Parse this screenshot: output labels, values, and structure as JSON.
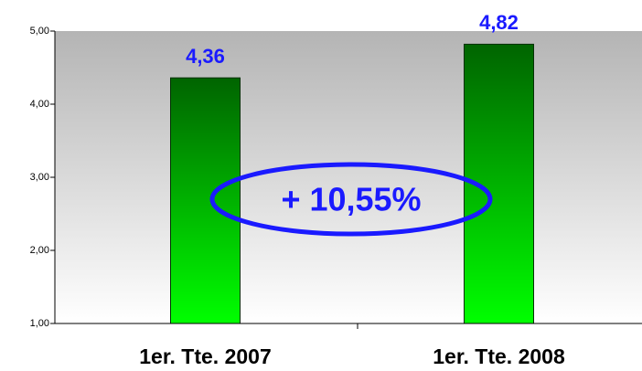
{
  "chart_data": {
    "type": "bar",
    "categories": [
      "1er. Tte. 2007",
      "1er. Tte. 2008"
    ],
    "values": [
      4.36,
      4.82
    ],
    "value_labels": [
      "4,36",
      "4,82"
    ],
    "color": "#00a000",
    "ylim": [
      1,
      5
    ],
    "yticks": [
      {
        "value": 1,
        "label": "1,00"
      },
      {
        "value": 2,
        "label": "2,00"
      },
      {
        "value": 3,
        "label": "3,00"
      },
      {
        "value": 4,
        "label": "4,00"
      },
      {
        "value": 5,
        "label": "5,00"
      }
    ],
    "annotation": "+ 10,55%"
  }
}
